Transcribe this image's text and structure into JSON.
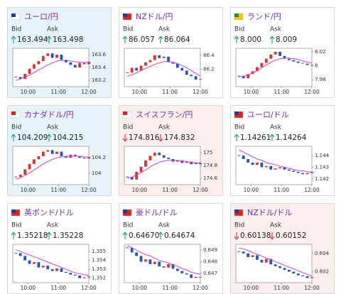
{
  "labels": {
    "bid": "Bid",
    "ask": "Ask"
  },
  "cards": [
    {
      "title": "ユーロ/円",
      "bid": "163.494",
      "ask": "163.498",
      "trend": "up",
      "highlight": "blue",
      "ylim": [
        163.1,
        163.7
      ],
      "yticks": [
        163.2,
        163.4,
        163.6
      ],
      "xlim": [
        9.5,
        12.0
      ],
      "xticks": [
        {
          "value": 10,
          "label": "10:00"
        },
        {
          "value": 11,
          "label": "11:00"
        },
        {
          "value": 12,
          "label": "12:00"
        }
      ],
      "x": [
        9.6,
        9.75,
        9.9,
        10.05,
        10.2,
        10.35,
        10.5,
        10.65,
        10.8,
        10.95,
        11.1,
        11.25,
        11.4,
        11.55,
        11.7,
        11.85,
        12.0
      ],
      "values": [
        163.25,
        163.22,
        163.3,
        163.38,
        163.45,
        163.5,
        163.58,
        163.62,
        163.55,
        163.6,
        163.52,
        163.48,
        163.44,
        163.4,
        163.47,
        163.45,
        163.49
      ],
      "ma": [
        163.2,
        163.22,
        163.25,
        163.28,
        163.32,
        163.36,
        163.4,
        163.44,
        163.47,
        163.5,
        163.51,
        163.51,
        163.5,
        163.49,
        163.48,
        163.48,
        163.48
      ]
    },
    {
      "title": "NZドル/円",
      "bid": "86.057",
      "ask": "86.064",
      "trend": "up",
      "ylim": [
        85.95,
        86.5
      ],
      "yticks": [
        86.2,
        86.4
      ],
      "xlim": [
        9.5,
        12.0
      ],
      "xticks": [
        {
          "value": 10,
          "label": "10:00"
        },
        {
          "value": 11,
          "label": "11:00"
        },
        {
          "value": 12,
          "label": "12:00"
        }
      ],
      "x": [
        9.6,
        9.75,
        9.9,
        10.05,
        10.2,
        10.35,
        10.5,
        10.65,
        10.8,
        10.95,
        11.1,
        11.25,
        11.4,
        11.55,
        11.7,
        11.85,
        12.0
      ],
      "values": [
        86.15,
        86.22,
        86.18,
        86.25,
        86.3,
        86.33,
        86.4,
        86.36,
        86.38,
        86.3,
        86.28,
        86.22,
        86.18,
        86.12,
        86.1,
        86.05,
        86.06
      ],
      "ma": [
        86.1,
        86.12,
        86.15,
        86.18,
        86.21,
        86.24,
        86.27,
        86.29,
        86.31,
        86.31,
        86.3,
        86.28,
        86.25,
        86.22,
        86.18,
        86.14,
        86.1
      ]
    },
    {
      "title": "ランド/円",
      "bid": "8.000",
      "ask": "8.009",
      "trend": "up",
      "ylim": [
        7.97,
        8.025
      ],
      "yticks": [
        7.98,
        8,
        8.02
      ],
      "xlim": [
        9.5,
        12.0
      ],
      "xticks": [
        {
          "value": 10,
          "label": "10:00"
        },
        {
          "value": 11,
          "label": "11:00"
        },
        {
          "value": 12,
          "label": "12:00"
        }
      ],
      "x": [
        9.6,
        9.75,
        9.9,
        10.05,
        10.2,
        10.35,
        10.5,
        10.65,
        10.8,
        10.95,
        11.1,
        11.25,
        11.4,
        11.55,
        11.7,
        11.85,
        12.0
      ],
      "values": [
        7.985,
        7.982,
        7.988,
        7.992,
        7.998,
        8.004,
        8.01,
        8.016,
        8.02,
        8.014,
        8.01,
        8.008,
        8.006,
        8.004,
        8.003,
        8.001,
        8.0
      ],
      "ma": [
        7.984,
        7.985,
        7.987,
        7.99,
        7.993,
        7.997,
        8.001,
        8.005,
        8.008,
        8.01,
        8.011,
        8.011,
        8.01,
        8.009,
        8.007,
        8.005,
        8.004
      ]
    },
    {
      "title": "カナダドル/円",
      "bid": "104.209",
      "ask": "104.215",
      "trend": "up",
      "highlight": "blue",
      "ylim": [
        103.85,
        104.35
      ],
      "yticks": [
        104,
        104.2
      ],
      "xlim": [
        9.5,
        12.0
      ],
      "xticks": [
        {
          "value": 10,
          "label": "10:00"
        },
        {
          "value": 11,
          "label": "11:00"
        },
        {
          "value": 12,
          "label": "12:00"
        }
      ],
      "x": [
        9.6,
        9.75,
        9.9,
        10.05,
        10.2,
        10.35,
        10.5,
        10.65,
        10.8,
        10.95,
        11.1,
        11.25,
        11.4,
        11.55,
        11.7,
        11.85,
        12.0
      ],
      "values": [
        103.95,
        103.98,
        104.05,
        104.12,
        104.18,
        104.22,
        104.28,
        104.3,
        104.25,
        104.28,
        104.22,
        104.2,
        104.24,
        104.22,
        104.2,
        104.19,
        104.21
      ],
      "ma": [
        103.92,
        103.94,
        103.97,
        104.0,
        104.04,
        104.08,
        104.12,
        104.15,
        104.18,
        104.2,
        104.21,
        104.22,
        104.22,
        104.22,
        104.22,
        104.21,
        104.21
      ]
    },
    {
      "title": "スイスフラン/円",
      "bid": "174.816",
      "ask": "174.832",
      "trend": "down",
      "highlight": "pink",
      "ylim": [
        174.5,
        175.1
      ],
      "yticks": [
        174.6,
        174.8,
        175
      ],
      "xlim": [
        9.5,
        12.0
      ],
      "xticks": [
        {
          "value": 10,
          "label": "10:00"
        },
        {
          "value": 11,
          "label": "11:00"
        },
        {
          "value": 12,
          "label": "12:00"
        }
      ],
      "x": [
        9.6,
        9.75,
        9.9,
        10.05,
        10.2,
        10.35,
        10.5,
        10.65,
        10.8,
        10.95,
        11.1,
        11.25,
        11.4,
        11.55,
        11.7,
        11.85,
        12.0
      ],
      "values": [
        174.62,
        174.58,
        174.7,
        174.78,
        174.88,
        174.95,
        175.0,
        174.96,
        174.92,
        174.9,
        174.86,
        174.88,
        174.84,
        174.86,
        174.82,
        174.84,
        174.82
      ],
      "ma": [
        174.6,
        174.62,
        174.65,
        174.69,
        174.73,
        174.78,
        174.82,
        174.85,
        174.87,
        174.88,
        174.88,
        174.88,
        174.87,
        174.86,
        174.85,
        174.84,
        174.84
      ]
    },
    {
      "title": "ユーロ/ドル",
      "bid": "1.14261",
      "ask": "1.14264",
      "trend": "up",
      "ylim": [
        1.1415,
        1.1448
      ],
      "yticks": [
        1.142,
        1.143,
        1.144
      ],
      "xlim": [
        9.5,
        12.0
      ],
      "xticks": [
        {
          "value": 10,
          "label": "10:00"
        },
        {
          "value": 11,
          "label": "11:00"
        },
        {
          "value": 12,
          "label": "12:00"
        }
      ],
      "x": [
        9.6,
        9.75,
        9.9,
        10.05,
        10.2,
        10.35,
        10.5,
        10.65,
        10.8,
        10.95,
        11.1,
        11.25,
        11.4,
        11.55,
        11.7,
        11.85,
        12.0
      ],
      "values": [
        1.144,
        1.1437,
        1.1434,
        1.1432,
        1.1434,
        1.143,
        1.1431,
        1.1428,
        1.1429,
        1.143,
        1.1428,
        1.1427,
        1.1426,
        1.1425,
        1.1424,
        1.1425,
        1.1426
      ],
      "ma": [
        1.1445,
        1.1443,
        1.1441,
        1.1439,
        1.1437,
        1.1436,
        1.1434,
        1.1433,
        1.1432,
        1.1431,
        1.143,
        1.1429,
        1.1428,
        1.1427,
        1.1427,
        1.1426,
        1.1426
      ]
    },
    {
      "title": "英ポンド/ドル",
      "bid": "1.35218",
      "ask": "1.35228",
      "trend": "up",
      "ylim": [
        1.3515,
        1.3558
      ],
      "yticks": [
        1.352,
        1.353,
        1.354,
        1.355
      ],
      "xlim": [
        9.5,
        12.0
      ],
      "xticks": [
        {
          "value": 10,
          "label": "10:00"
        },
        {
          "value": 11,
          "label": "11:00"
        },
        {
          "value": 12,
          "label": "12:00"
        }
      ],
      "x": [
        9.6,
        9.75,
        9.9,
        10.05,
        10.2,
        10.35,
        10.5,
        10.65,
        10.8,
        10.95,
        11.1,
        11.25,
        11.4,
        11.55,
        11.7,
        11.85,
        12.0
      ],
      "values": [
        1.3548,
        1.3545,
        1.354,
        1.3536,
        1.3538,
        1.3532,
        1.3534,
        1.353,
        1.3528,
        1.3531,
        1.3527,
        1.3526,
        1.3524,
        1.3523,
        1.352,
        1.3521,
        1.3522
      ],
      "ma": [
        1.3552,
        1.355,
        1.3548,
        1.3546,
        1.3544,
        1.3542,
        1.354,
        1.3538,
        1.3536,
        1.3534,
        1.3532,
        1.353,
        1.3528,
        1.3526,
        1.3525,
        1.3524,
        1.3523
      ]
    },
    {
      "title": "豪ドル/ドル",
      "bid": "0.64670",
      "ask": "0.64674",
      "trend": "up",
      "ylim": [
        0.6462,
        0.6495
      ],
      "yticks": [
        0.647,
        0.648,
        0.649
      ],
      "xlim": [
        9.5,
        12.0
      ],
      "xticks": [
        {
          "value": 10,
          "label": "10:00"
        },
        {
          "value": 11,
          "label": "11:00"
        },
        {
          "value": 12,
          "label": "12:00"
        }
      ],
      "x": [
        9.6,
        9.75,
        9.9,
        10.05,
        10.2,
        10.35,
        10.5,
        10.65,
        10.8,
        10.95,
        11.1,
        11.25,
        11.4,
        11.55,
        11.7,
        11.85,
        12.0
      ],
      "values": [
        0.6492,
        0.6488,
        0.6485,
        0.648,
        0.6482,
        0.6478,
        0.648,
        0.6476,
        0.6475,
        0.6478,
        0.6474,
        0.6472,
        0.647,
        0.6469,
        0.6466,
        0.6467,
        0.6467
      ],
      "ma": [
        0.6494,
        0.6492,
        0.649,
        0.6488,
        0.6486,
        0.6485,
        0.6483,
        0.6481,
        0.648,
        0.6479,
        0.6477,
        0.6476,
        0.6474,
        0.6473,
        0.6471,
        0.647,
        0.6469
      ]
    },
    {
      "title": "NZドル/ドル",
      "bid": "0.60138",
      "ask": "0.60152",
      "trend": "down",
      "highlight": "pink",
      "ylim": [
        0.6008,
        0.605
      ],
      "yticks": [
        0.602,
        0.604
      ],
      "xlim": [
        9.5,
        12.0
      ],
      "xticks": [
        {
          "value": 10,
          "label": "10:00"
        },
        {
          "value": 11,
          "label": "11:00"
        },
        {
          "value": 12,
          "label": "12:00"
        }
      ],
      "x": [
        9.6,
        9.75,
        9.9,
        10.05,
        10.2,
        10.35,
        10.5,
        10.65,
        10.8,
        10.95,
        11.1,
        11.25,
        11.4,
        11.55,
        11.7,
        11.85,
        12.0
      ],
      "values": [
        0.6042,
        0.604,
        0.6036,
        0.6038,
        0.6033,
        0.603,
        0.6034,
        0.6028,
        0.6026,
        0.6024,
        0.6022,
        0.602,
        0.6018,
        0.6016,
        0.6015,
        0.6013,
        0.6014
      ],
      "ma": [
        0.6046,
        0.6045,
        0.6043,
        0.6041,
        0.6039,
        0.6037,
        0.6035,
        0.6033,
        0.6031,
        0.6029,
        0.6027,
        0.6025,
        0.6023,
        0.6021,
        0.6019,
        0.6017,
        0.6015
      ]
    }
  ]
}
